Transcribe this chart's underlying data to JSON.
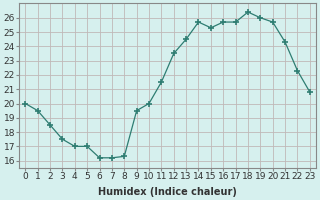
{
  "x": [
    0,
    1,
    2,
    3,
    4,
    5,
    6,
    7,
    8,
    9,
    10,
    11,
    12,
    13,
    14,
    15,
    16,
    17,
    18,
    19,
    20,
    21,
    22,
    23
  ],
  "y": [
    20,
    19.5,
    18.5,
    17.5,
    17,
    17,
    16.2,
    16.2,
    16.3,
    19.5,
    20,
    21.5,
    23.5,
    24.5,
    25.7,
    25.3,
    25.7,
    25.7,
    26.4,
    26,
    25.7,
    24.3,
    22.3,
    20.8
  ],
  "line_color": "#2e7d72",
  "marker": "+",
  "marker_size": 4,
  "bg_color": "#d6f0ee",
  "grid_color": "#c0b8b8",
  "xlabel": "Humidex (Indice chaleur)",
  "xlim": [
    -0.5,
    23.5
  ],
  "ylim": [
    15.5,
    27
  ],
  "yticks": [
    16,
    17,
    18,
    19,
    20,
    21,
    22,
    23,
    24,
    25,
    26
  ],
  "xticks": [
    0,
    1,
    2,
    3,
    4,
    5,
    6,
    7,
    8,
    9,
    10,
    11,
    12,
    13,
    14,
    15,
    16,
    17,
    18,
    19,
    20,
    21,
    22,
    23
  ],
  "xlabel_fontsize": 7,
  "tick_fontsize": 6.5,
  "tick_color": "#333333",
  "spine_color": "#888888"
}
